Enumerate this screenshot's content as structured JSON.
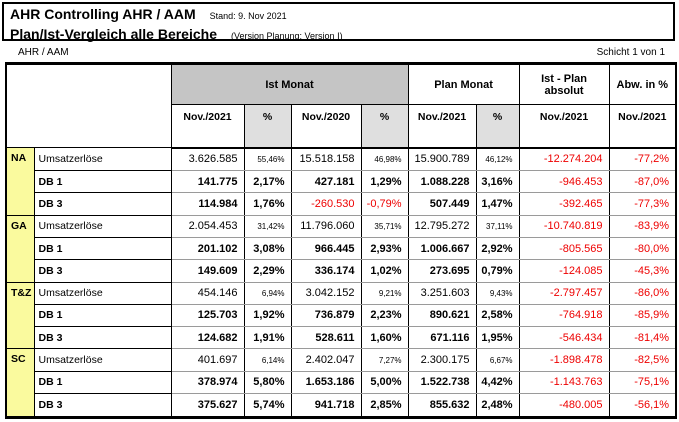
{
  "header": {
    "title": "AHR Controlling AHR / AAM",
    "stand": "Stand: 9. Nov 2021",
    "subtitle": "Plan/Ist-Vergleich alle Bereiche",
    "version": "(Version Planung: Version I)"
  },
  "meta": {
    "left": "AHR / AAM",
    "right": "Schicht 1 von 1"
  },
  "table": {
    "group_headers": {
      "ist_monat": "Ist Monat",
      "plan_monat": "Plan Monat",
      "ist_plan_absolut": "Ist - Plan absolut",
      "abw_in_pct": "Abw. in %"
    },
    "column_headers": [
      "Nov./2021",
      "%",
      "Nov./2020",
      "%",
      "Nov./2021",
      "%",
      "Nov./2021",
      "Nov./2021"
    ],
    "percent_column_indexes": [
      1,
      3,
      5
    ],
    "sections": [
      {
        "area": "NA",
        "rows": [
          {
            "label": "Umsatzerlöse",
            "bold": false,
            "values": [
              "3.626.585",
              "55,46%",
              "15.518.158",
              "46,98%",
              "15.900.789",
              "46,12%",
              "-12.274.204",
              "-77,2%"
            ]
          },
          {
            "label": "DB 1",
            "bold": true,
            "values": [
              "141.775",
              "2,17%",
              "427.181",
              "1,29%",
              "1.088.228",
              "3,16%",
              "-946.453",
              "-87,0%"
            ]
          },
          {
            "label": "DB 3",
            "bold": true,
            "values": [
              "114.984",
              "1,76%",
              "-260.530",
              "-0,79%",
              "507.449",
              "1,47%",
              "-392.465",
              "-77,3%"
            ]
          }
        ]
      },
      {
        "area": "GA",
        "rows": [
          {
            "label": "Umsatzerlöse",
            "bold": false,
            "values": [
              "2.054.453",
              "31,42%",
              "11.796.060",
              "35,71%",
              "12.795.272",
              "37,11%",
              "-10.740.819",
              "-83,9%"
            ]
          },
          {
            "label": "DB 1",
            "bold": true,
            "values": [
              "201.102",
              "3,08%",
              "966.445",
              "2,93%",
              "1.006.667",
              "2,92%",
              "-805.565",
              "-80,0%"
            ]
          },
          {
            "label": "DB 3",
            "bold": true,
            "values": [
              "149.609",
              "2,29%",
              "336.174",
              "1,02%",
              "273.695",
              "0,79%",
              "-124.085",
              "-45,3%"
            ]
          }
        ]
      },
      {
        "area": "T&Z",
        "rows": [
          {
            "label": "Umsatzerlöse",
            "bold": false,
            "values": [
              "454.146",
              "6,94%",
              "3.042.152",
              "9,21%",
              "3.251.603",
              "9,43%",
              "-2.797.457",
              "-86,0%"
            ]
          },
          {
            "label": "DB 1",
            "bold": true,
            "values": [
              "125.703",
              "1,92%",
              "736.879",
              "2,23%",
              "890.621",
              "2,58%",
              "-764.918",
              "-85,9%"
            ]
          },
          {
            "label": "DB 3",
            "bold": true,
            "values": [
              "124.682",
              "1,91%",
              "528.611",
              "1,60%",
              "671.116",
              "1,95%",
              "-546.434",
              "-81,4%"
            ]
          }
        ]
      },
      {
        "area": "SC",
        "rows": [
          {
            "label": "Umsatzerlöse",
            "bold": false,
            "values": [
              "401.697",
              "6,14%",
              "2.402.047",
              "7,27%",
              "2.300.175",
              "6,67%",
              "-1.898.478",
              "-82,5%"
            ]
          },
          {
            "label": "DB 1",
            "bold": true,
            "values": [
              "378.974",
              "5,80%",
              "1.653.186",
              "5,00%",
              "1.522.738",
              "4,42%",
              "-1.143.763",
              "-75,1%"
            ]
          },
          {
            "label": "DB 3",
            "bold": true,
            "values": [
              "375.627",
              "5,74%",
              "941.718",
              "2,85%",
              "855.632",
              "2,48%",
              "-480.005",
              "-56,1%"
            ]
          }
        ]
      }
    ]
  },
  "colors": {
    "header_gray": "#c5c5c5",
    "area_yellow": "#fafa9e",
    "negative_red": "#ee0000"
  }
}
